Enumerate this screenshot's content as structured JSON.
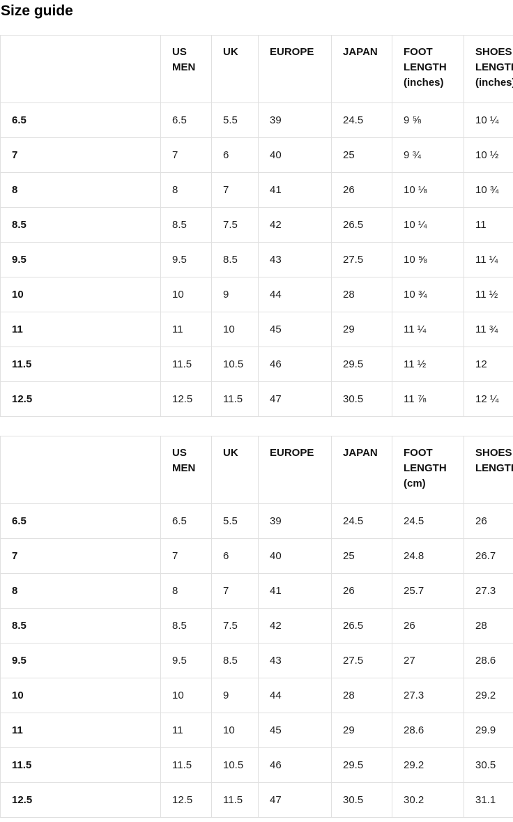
{
  "page_title": "Size guide",
  "colors": {
    "background": "#ffffff",
    "text": "#1a1a1a",
    "heading_text": "#000000",
    "table_border": "#e0e0e0"
  },
  "tables": [
    {
      "id": "mens-sizes-inches",
      "columns": [
        "",
        "US MEN",
        "UK",
        "EUROPE",
        "JAPAN",
        "FOOT LENGTH (inches)",
        "SHOES LENGTH (inches)"
      ],
      "rows": [
        {
          "label": "6.5",
          "cells": [
            "6.5",
            "5.5",
            "39",
            "24.5",
            "9 ⅝",
            "10 ¼"
          ]
        },
        {
          "label": "7",
          "cells": [
            "7",
            "6",
            "40",
            "25",
            "9 ¾",
            "10 ½"
          ]
        },
        {
          "label": "8",
          "cells": [
            "8",
            "7",
            "41",
            "26",
            "10 ⅛",
            "10 ¾"
          ]
        },
        {
          "label": "8.5",
          "cells": [
            "8.5",
            "7.5",
            "42",
            "26.5",
            "10 ¼",
            "11"
          ]
        },
        {
          "label": "9.5",
          "cells": [
            "9.5",
            "8.5",
            "43",
            "27.5",
            "10 ⅝",
            "11 ¼"
          ]
        },
        {
          "label": "10",
          "cells": [
            "10",
            "9",
            "44",
            "28",
            "10 ¾",
            "11 ½"
          ]
        },
        {
          "label": "11",
          "cells": [
            "11",
            "10",
            "45",
            "29",
            "11 ¼",
            "11 ¾"
          ]
        },
        {
          "label": "11.5",
          "cells": [
            "11.5",
            "10.5",
            "46",
            "29.5",
            "11 ½",
            "12"
          ]
        },
        {
          "label": "12.5",
          "cells": [
            "12.5",
            "11.5",
            "47",
            "30.5",
            "11 ⅞",
            "12 ¼"
          ]
        }
      ]
    },
    {
      "id": "mens-sizes-cm",
      "columns": [
        "",
        "US MEN",
        "UK",
        "EUROPE",
        "JAPAN",
        "FOOT LENGTH (cm)",
        "SHOES LENGTH (cm)"
      ],
      "rows": [
        {
          "label": "6.5",
          "cells": [
            "6.5",
            "5.5",
            "39",
            "24.5",
            "24.5",
            "26"
          ]
        },
        {
          "label": "7",
          "cells": [
            "7",
            "6",
            "40",
            "25",
            "24.8",
            "26.7"
          ]
        },
        {
          "label": "8",
          "cells": [
            "8",
            "7",
            "41",
            "26",
            "25.7",
            "27.3"
          ]
        },
        {
          "label": "8.5",
          "cells": [
            "8.5",
            "7.5",
            "42",
            "26.5",
            "26",
            "28"
          ]
        },
        {
          "label": "9.5",
          "cells": [
            "9.5",
            "8.5",
            "43",
            "27.5",
            "27",
            "28.6"
          ]
        },
        {
          "label": "10",
          "cells": [
            "10",
            "9",
            "44",
            "28",
            "27.3",
            "29.2"
          ]
        },
        {
          "label": "11",
          "cells": [
            "11",
            "10",
            "45",
            "29",
            "28.6",
            "29.9"
          ]
        },
        {
          "label": "11.5",
          "cells": [
            "11.5",
            "10.5",
            "46",
            "29.5",
            "29.2",
            "30.5"
          ]
        },
        {
          "label": "12.5",
          "cells": [
            "12.5",
            "11.5",
            "47",
            "30.5",
            "30.2",
            "31.1"
          ]
        }
      ]
    }
  ]
}
